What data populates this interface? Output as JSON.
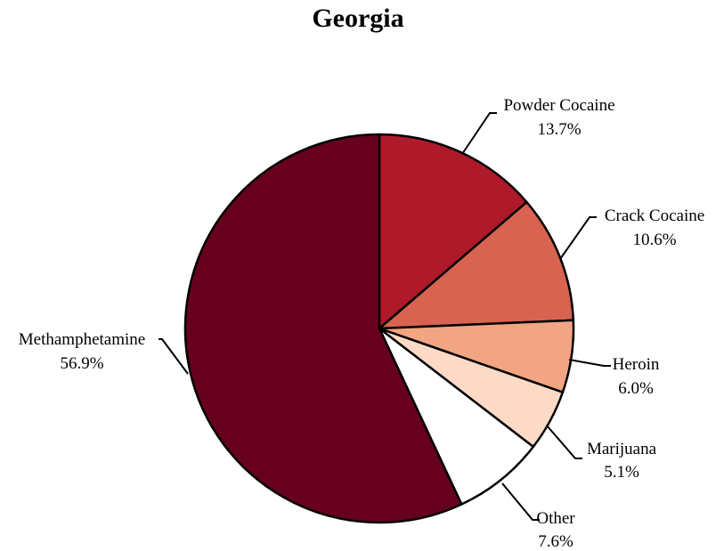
{
  "chart_data": {
    "type": "pie",
    "title": "Georgia",
    "start_angle_deg": 0,
    "direction": "clockwise",
    "slice_outline_color": "#000000",
    "leader_line_color": "#000000",
    "slices": [
      {
        "label": "Powder Cocaine",
        "value": 13.7,
        "display": "13.7%",
        "color": "#ae1a2a"
      },
      {
        "label": "Crack Cocaine",
        "value": 10.6,
        "display": "10.6%",
        "color": "#d86350"
      },
      {
        "label": "Heroin",
        "value": 6.0,
        "display": "6.0%",
        "color": "#f2a583"
      },
      {
        "label": "Marijuana",
        "value": 5.1,
        "display": "5.1%",
        "color": "#fcdac6"
      },
      {
        "label": "Other",
        "value": 7.6,
        "display": "7.6%",
        "color": "#ffffff"
      },
      {
        "label": "Methamphetamine",
        "value": 56.9,
        "display": "56.9%",
        "color": "#67001e"
      }
    ]
  }
}
